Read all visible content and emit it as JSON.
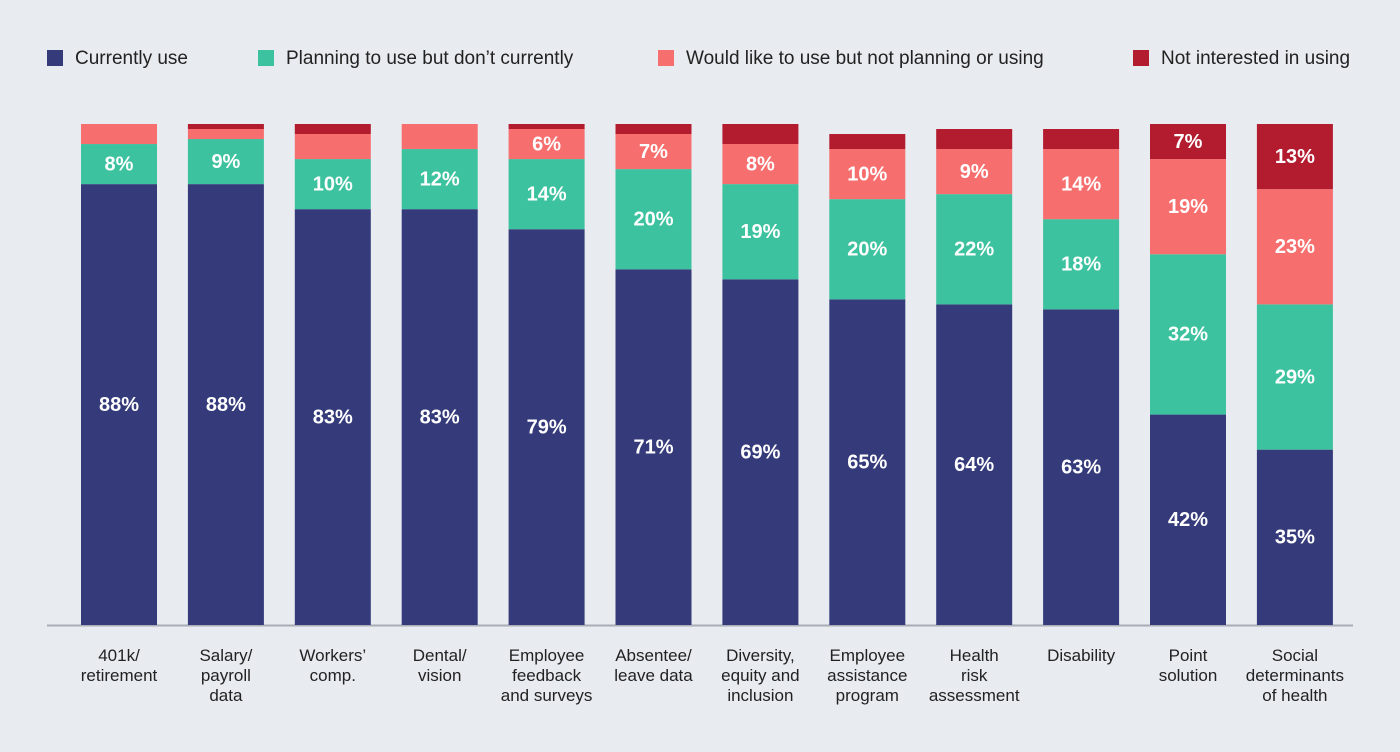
{
  "chart_data": {
    "type": "stacked_bar",
    "categories": [
      "401k/\nretirement",
      "Salary/\npayroll\ndata",
      "Workers’\ncomp.",
      "Dental/\nvision",
      "Employee\nfeedback\nand surveys",
      "Absentee/\nleave data",
      "Diversity,\nequity and\ninclusion",
      "Employee\nassistance\nprogram",
      "Health\nrisk\nassessment",
      "Disability",
      "Point\nsolution",
      "Social\ndeterminants\nof health"
    ],
    "series": [
      {
        "name": "Currently use",
        "color": "#353b7a",
        "values": [
          88,
          88,
          83,
          83,
          79,
          71,
          69,
          65,
          64,
          63,
          42,
          35
        ],
        "value_labels": [
          "88%",
          "88%",
          "83%",
          "83%",
          "79%",
          "71%",
          "69%",
          "65%",
          "64%",
          "63%",
          "42%",
          "35%"
        ]
      },
      {
        "name": "Planning to use but don’t currently",
        "color": "#3dc29f",
        "values": [
          8,
          9,
          10,
          12,
          14,
          20,
          19,
          20,
          22,
          18,
          32,
          29
        ],
        "value_labels": [
          "8%",
          "9%",
          "10%",
          "12%",
          "14%",
          "20%",
          "19%",
          "20%",
          "22%",
          "18%",
          "32%",
          "29%"
        ]
      },
      {
        "name": "Would like to use but not planning or using",
        "color": "#f76e6e",
        "values": [
          4,
          2,
          5,
          5,
          6,
          7,
          8,
          10,
          9,
          14,
          19,
          23
        ],
        "value_labels": [
          null,
          null,
          null,
          null,
          "6%",
          "7%",
          "8%",
          "10%",
          "9%",
          "14%",
          "19%",
          "23%"
        ]
      },
      {
        "name": "Not interested in using",
        "color": "#b31b2e",
        "values": [
          0,
          1,
          2,
          0,
          1,
          2,
          4,
          3,
          4,
          4,
          7,
          13
        ],
        "value_labels": [
          null,
          null,
          null,
          null,
          null,
          null,
          null,
          null,
          null,
          null,
          "7%",
          "13%"
        ]
      }
    ],
    "ylim": [
      0,
      100
    ],
    "legend": "top"
  }
}
